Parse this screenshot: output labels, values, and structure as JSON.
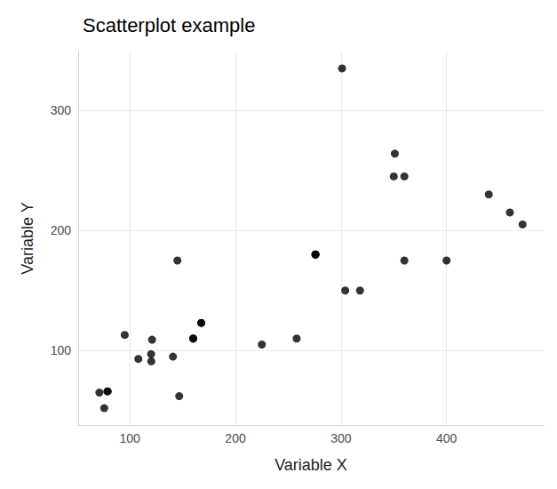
{
  "chart_data": {
    "type": "scatter",
    "title": "Scatterplot example",
    "xlabel": "Variable X",
    "ylabel": "Variable Y",
    "x": [
      160,
      160,
      108,
      258,
      360,
      225,
      360,
      146.7,
      140.8,
      167.6,
      167.6,
      275.8,
      275.8,
      275.8,
      472,
      460,
      440,
      78.7,
      75.7,
      71.1,
      120.1,
      318,
      304,
      350,
      400,
      79,
      120.3,
      95.1,
      351,
      145,
      301,
      121
    ],
    "values": [
      110,
      110,
      93,
      110,
      175,
      105,
      245,
      62,
      95,
      123,
      123,
      180,
      180,
      180,
      205,
      215,
      230,
      66,
      52,
      65,
      97,
      150,
      150,
      245,
      175,
      66,
      91,
      113,
      264,
      175,
      335,
      109
    ],
    "color": "#000000",
    "marker": "circle",
    "xlim": [
      51,
      492
    ],
    "ylim": [
      38,
      349
    ],
    "xticks": [
      100,
      200,
      300,
      400
    ],
    "yticks": [
      100,
      200,
      300
    ],
    "grid": true
  }
}
